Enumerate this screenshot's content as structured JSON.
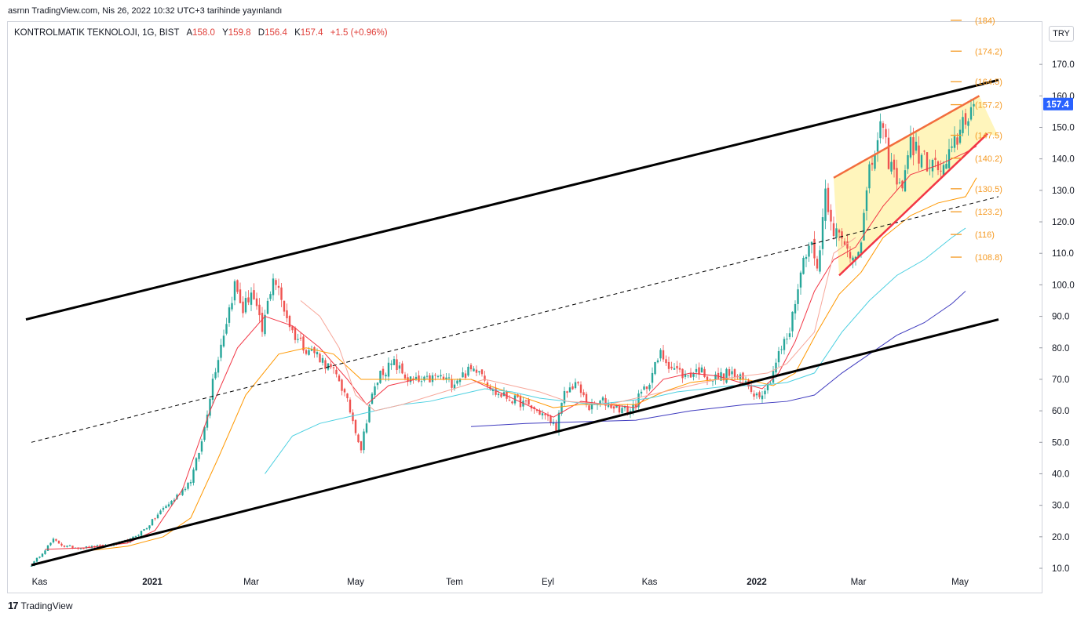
{
  "header": {
    "published": "asrnn TradingView.com, Nis 26, 2022 10:32 UTC+3 tarihinde yayınlandı"
  },
  "legend": {
    "symbol": "KONTROLMATIK TEKNOLOJI, 1G, BIST",
    "open_label": "A",
    "open": "158.0",
    "high_label": "Y",
    "high": "159.8",
    "low_label": "D",
    "low": "156.4",
    "close_label": "K",
    "close": "157.4",
    "change": "+1.5 (+0.96%)"
  },
  "currency": "TRY",
  "footer": {
    "brand": "TradingView",
    "logo": "tradingview-logo-icon"
  },
  "chart_data": {
    "type": "candlestick",
    "y_axis": {
      "min": 10,
      "max": 190,
      "ticks": [
        "10.0",
        "20.0",
        "30.0",
        "40.0",
        "50.0",
        "60.0",
        "70.0",
        "80.0",
        "90.0",
        "100.0",
        "110.0",
        "120.0",
        "130.0",
        "140.0",
        "150.0",
        "160.0",
        "170.0"
      ]
    },
    "x_axis": {
      "labels": [
        "Kas",
        "2021",
        "Mar",
        "May",
        "Tem",
        "Eyl",
        "Kas",
        "2022",
        "Mar",
        "May"
      ]
    },
    "last_price": {
      "value": 157.4,
      "label": "157.4",
      "color": "#2962ff"
    },
    "price_anchors": [
      [
        0,
        11
      ],
      [
        4,
        15
      ],
      [
        8,
        19
      ],
      [
        12,
        17
      ],
      [
        18,
        16.5
      ],
      [
        25,
        17
      ],
      [
        30,
        17.5
      ],
      [
        36,
        19
      ],
      [
        42,
        23
      ],
      [
        48,
        29
      ],
      [
        52,
        32
      ],
      [
        58,
        38
      ],
      [
        62,
        50
      ],
      [
        66,
        70
      ],
      [
        70,
        85
      ],
      [
        74,
        100
      ],
      [
        77,
        92
      ],
      [
        80,
        98
      ],
      [
        84,
        85
      ],
      [
        88,
        103
      ],
      [
        91,
        95
      ],
      [
        95,
        85
      ],
      [
        100,
        80
      ],
      [
        104,
        78
      ],
      [
        108,
        74
      ],
      [
        112,
        70
      ],
      [
        116,
        60
      ],
      [
        120,
        48
      ],
      [
        123,
        62
      ],
      [
        127,
        72
      ],
      [
        132,
        75
      ],
      [
        137,
        70
      ],
      [
        142,
        69
      ],
      [
        148,
        71
      ],
      [
        153,
        69
      ],
      [
        158,
        72
      ],
      [
        163,
        74
      ],
      [
        168,
        66
      ],
      [
        174,
        64
      ],
      [
        180,
        62
      ],
      [
        186,
        59
      ],
      [
        191,
        55
      ],
      [
        194,
        65
      ],
      [
        198,
        69
      ],
      [
        203,
        61
      ],
      [
        208,
        63
      ],
      [
        213,
        61
      ],
      [
        218,
        60
      ],
      [
        224,
        68
      ],
      [
        229,
        78
      ],
      [
        233,
        74
      ],
      [
        238,
        71
      ],
      [
        243,
        73
      ],
      [
        248,
        70
      ],
      [
        254,
        72
      ],
      [
        260,
        69
      ],
      [
        264,
        65
      ],
      [
        268,
        68
      ],
      [
        272,
        78
      ],
      [
        276,
        85
      ],
      [
        279,
        100
      ],
      [
        283,
        115
      ],
      [
        286,
        105
      ],
      [
        289,
        130
      ],
      [
        292,
        118
      ],
      [
        296,
        112
      ],
      [
        299,
        109
      ],
      [
        302,
        115
      ],
      [
        305,
        135
      ],
      [
        309,
        150
      ],
      [
        312,
        140
      ],
      [
        316,
        130
      ],
      [
        320,
        145
      ],
      [
        324,
        140
      ],
      [
        328,
        138
      ],
      [
        332,
        136
      ],
      [
        335,
        142
      ],
      [
        339,
        152
      ],
      [
        343,
        157.4
      ]
    ],
    "series": [
      {
        "name": "",
        "color": "#f23645",
        "points": [
          [
            5,
            16
          ],
          [
            20,
            16.5
          ],
          [
            35,
            18
          ],
          [
            45,
            22
          ],
          [
            55,
            35
          ],
          [
            65,
            60
          ],
          [
            75,
            80
          ],
          [
            85,
            90
          ],
          [
            95,
            87
          ],
          [
            105,
            80
          ],
          [
            115,
            70
          ],
          [
            122,
            62
          ],
          [
            130,
            68
          ],
          [
            140,
            70
          ],
          [
            150,
            70
          ],
          [
            160,
            70
          ],
          [
            170,
            66
          ],
          [
            180,
            62
          ],
          [
            190,
            58
          ],
          [
            200,
            63
          ],
          [
            210,
            62
          ],
          [
            220,
            61
          ],
          [
            230,
            70
          ],
          [
            240,
            72
          ],
          [
            250,
            71
          ],
          [
            258,
            69
          ],
          [
            266,
            67
          ],
          [
            272,
            72
          ],
          [
            278,
            82
          ],
          [
            285,
            98
          ],
          [
            292,
            108
          ],
          [
            300,
            112
          ],
          [
            310,
            125
          ],
          [
            320,
            135
          ],
          [
            330,
            138
          ],
          [
            340,
            142
          ],
          [
            344,
            144
          ]
        ]
      },
      {
        "name": "",
        "color": "#ff9800",
        "points": [
          [
            20,
            15.5
          ],
          [
            35,
            17
          ],
          [
            48,
            20
          ],
          [
            58,
            26
          ],
          [
            68,
            45
          ],
          [
            78,
            65
          ],
          [
            90,
            78
          ],
          [
            100,
            80
          ],
          [
            110,
            78
          ],
          [
            120,
            70
          ],
          [
            130,
            70
          ],
          [
            140,
            70
          ],
          [
            150,
            70
          ],
          [
            160,
            70
          ],
          [
            170,
            67
          ],
          [
            180,
            64
          ],
          [
            190,
            61
          ],
          [
            200,
            62
          ],
          [
            210,
            62
          ],
          [
            220,
            62
          ],
          [
            230,
            66
          ],
          [
            240,
            69
          ],
          [
            250,
            70
          ],
          [
            260,
            70
          ],
          [
            270,
            68
          ],
          [
            278,
            72
          ],
          [
            286,
            85
          ],
          [
            294,
            97
          ],
          [
            302,
            104
          ],
          [
            310,
            115
          ],
          [
            320,
            122
          ],
          [
            330,
            126
          ],
          [
            340,
            128
          ],
          [
            344,
            134
          ]
        ]
      },
      {
        "name": "",
        "color": "#4dd0e1",
        "points": [
          [
            85,
            40
          ],
          [
            95,
            52
          ],
          [
            105,
            56
          ],
          [
            115,
            58
          ],
          [
            125,
            60
          ],
          [
            135,
            62
          ],
          [
            145,
            63
          ],
          [
            155,
            65
          ],
          [
            165,
            67
          ],
          [
            175,
            66
          ],
          [
            185,
            64
          ],
          [
            195,
            63
          ],
          [
            205,
            62
          ],
          [
            215,
            63
          ],
          [
            225,
            64
          ],
          [
            235,
            66
          ],
          [
            245,
            67
          ],
          [
            255,
            68
          ],
          [
            265,
            68
          ],
          [
            275,
            69
          ],
          [
            285,
            72
          ],
          [
            295,
            85
          ],
          [
            305,
            95
          ],
          [
            315,
            103
          ],
          [
            325,
            108
          ],
          [
            335,
            115
          ],
          [
            340,
            118
          ]
        ]
      },
      {
        "name": "",
        "color": "#3f3bbf",
        "points": [
          [
            160,
            55
          ],
          [
            180,
            56
          ],
          [
            200,
            56.5
          ],
          [
            220,
            57
          ],
          [
            240,
            60
          ],
          [
            260,
            62
          ],
          [
            275,
            63
          ],
          [
            285,
            65
          ],
          [
            295,
            72
          ],
          [
            305,
            78
          ],
          [
            315,
            84
          ],
          [
            325,
            88
          ],
          [
            335,
            94
          ],
          [
            340,
            98
          ]
        ]
      },
      {
        "name": "",
        "color": "#f7a79a",
        "points": [
          [
            98,
            95
          ],
          [
            105,
            90
          ],
          [
            112,
            80
          ],
          [
            118,
            65
          ],
          [
            125,
            60
          ],
          [
            135,
            62
          ],
          [
            150,
            66
          ],
          [
            165,
            70
          ],
          [
            175,
            68
          ],
          [
            185,
            66
          ],
          [
            195,
            63
          ],
          [
            210,
            62
          ],
          [
            230,
            66
          ],
          [
            250,
            70
          ],
          [
            268,
            72
          ],
          [
            275,
            75
          ],
          [
            285,
            85
          ],
          [
            292,
            110
          ],
          [
            300,
            115
          ]
        ]
      }
    ],
    "trendlines": [
      {
        "name": "upper-channel",
        "from": [
          -2,
          89
        ],
        "to": [
          352,
          165
        ],
        "color": "#000000",
        "width": 3,
        "dash": false
      },
      {
        "name": "lower-channel",
        "from": [
          0,
          11
        ],
        "to": [
          352,
          89
        ],
        "color": "#000000",
        "width": 3,
        "dash": false
      },
      {
        "name": "mid-channel",
        "from": [
          0,
          50
        ],
        "to": [
          352,
          128
        ],
        "color": "#000000",
        "width": 1,
        "dash": true
      },
      {
        "name": "wedge-upper",
        "from": [
          292,
          134
        ],
        "to": [
          345,
          160
        ],
        "color": "#f26d3d",
        "width": 2.5,
        "dash": false
      },
      {
        "name": "wedge-lower",
        "from": [
          294,
          103
        ],
        "to": [
          348,
          148
        ],
        "color": "#f23645",
        "width": 2.5,
        "dash": false
      }
    ],
    "wedge_fill": {
      "points": [
        [
          292,
          134
        ],
        [
          345,
          160
        ],
        [
          352,
          147
        ],
        [
          348,
          148
        ],
        [
          294,
          103
        ]
      ],
      "color": "#fff3b0"
    },
    "fib_levels": [
      {
        "value": 174.2,
        "label": "(174.2)"
      },
      {
        "value": 164.5,
        "label": "(164.5)"
      },
      {
        "value": 157.2,
        "label": "(157.2)"
      },
      {
        "value": 147.5,
        "label": "(147.5)"
      },
      {
        "value": 140.2,
        "label": "(140.2)"
      },
      {
        "value": 130.5,
        "label": "(130.5)"
      },
      {
        "value": 123.2,
        "label": "(123.2)"
      },
      {
        "value": 116,
        "label": "(116)"
      },
      {
        "value": 108.8,
        "label": "(108.8)"
      },
      {
        "value": 184,
        "label": "(184)"
      }
    ],
    "colors": {
      "up": "#26a69a",
      "down": "#ef5350",
      "fib": "#f59a23"
    }
  }
}
